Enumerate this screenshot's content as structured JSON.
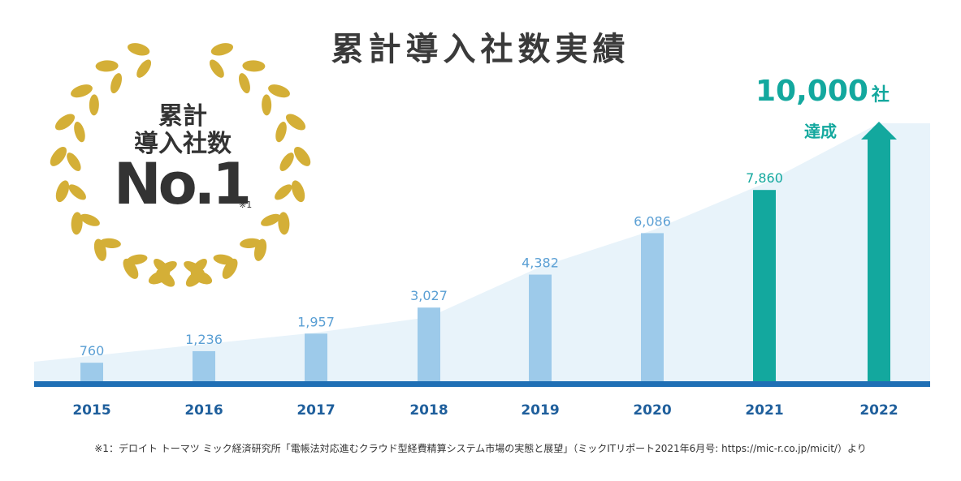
{
  "title": "累計導入社数実績",
  "badge": {
    "line1": "累計",
    "line2": "導入社数",
    "rank": "No.1",
    "note": "※1"
  },
  "goal": {
    "number": "10,000",
    "unit": "社",
    "label": "達成"
  },
  "footnote": "※1：デロイト トーマツ ミック経済研究所「電帳法対応進むクラウド型経費精算システム市場の実態と展望」（ミックITリポート2021年6月号: https://mic-r.co.jp/micit/）より",
  "colors": {
    "bar": "#9dcaea",
    "bar_highlight": "#13a89e",
    "value_label": "#5a9fd4",
    "baseline": "#1f6fb5",
    "year_label": "#1f5f9c",
    "area": "#e8f3fa",
    "laurel": "#d4af37"
  },
  "chart_data": {
    "type": "bar",
    "title": "累計導入社数実績",
    "categories": [
      "2015",
      "2016",
      "2017",
      "2018",
      "2019",
      "2020",
      "2021",
      "2022"
    ],
    "values": [
      760,
      1236,
      1957,
      3027,
      4382,
      6086,
      7860,
      10000
    ],
    "value_labels": [
      "760",
      "1,236",
      "1,957",
      "3,027",
      "4,382",
      "6,086",
      "7,860",
      ""
    ],
    "highlight_categories": [
      "2021",
      "2022"
    ],
    "ylim": [
      0,
      12000
    ],
    "grid": false
  }
}
